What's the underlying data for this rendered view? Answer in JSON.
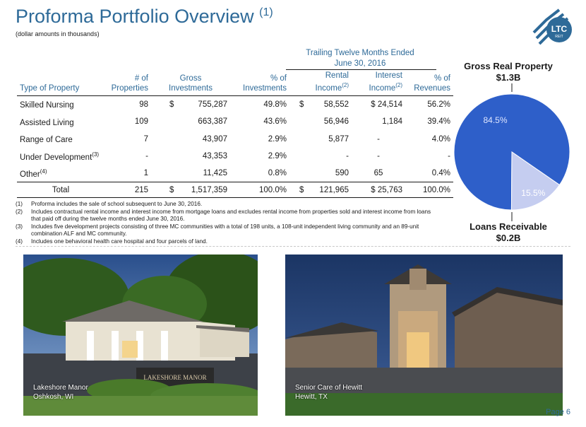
{
  "header": {
    "title": "Proforma Portfolio Overview",
    "title_footnote": "(1)",
    "subtitle": "(dollar amounts in thousands)"
  },
  "logo": {
    "icon": "ltc-reit-logo-icon",
    "text": "LTC",
    "subtext": "REIT"
  },
  "table": {
    "ttm_header_line1": "Trailing Twelve Months Ended",
    "ttm_header_line2": "June 30, 2016",
    "columns": {
      "type": "Type of Property",
      "num_line1": "# of",
      "num_line2": "Properties",
      "gross_line1": "Gross",
      "gross_line2": "Investments",
      "pct_inv_line1": "% of",
      "pct_inv_line2": "Investments",
      "rental_line1": "Rental",
      "rental_line2": "Income",
      "rental_footnote": "(2)",
      "interest_line1": "Interest",
      "interest_line2": "Income",
      "interest_footnote": "(2)",
      "pct_rev_line1": "% of",
      "pct_rev_line2": "Revenues"
    },
    "rows": [
      {
        "type": "Skilled Nursing",
        "footnote": "",
        "num": "98",
        "gross_prefix": "$",
        "gross": "755,287",
        "pct_inv": "49.8%",
        "rental_prefix": "$",
        "rental": "58,552",
        "interest": "$ 24,514",
        "pct_rev": "56.2%"
      },
      {
        "type": "Assisted Living",
        "footnote": "",
        "num": "109",
        "gross_prefix": "",
        "gross": "663,387",
        "pct_inv": "43.6%",
        "rental_prefix": "",
        "rental": "56,946",
        "interest": "1,184",
        "pct_rev": "39.4%"
      },
      {
        "type": "Range of Care",
        "footnote": "",
        "num": "7",
        "gross_prefix": "",
        "gross": "43,907",
        "pct_inv": "2.9%",
        "rental_prefix": "",
        "rental": "5,877",
        "interest": "-",
        "pct_rev": "4.0%"
      },
      {
        "type": "Under Development",
        "footnote": "(3)",
        "num": "-",
        "gross_prefix": "",
        "gross": "43,353",
        "pct_inv": "2.9%",
        "rental_prefix": "",
        "rental": "-",
        "interest": "-",
        "pct_rev": "-"
      },
      {
        "type": "Other",
        "footnote": "(4)",
        "num": "1",
        "gross_prefix": "",
        "gross": "11,425",
        "pct_inv": "0.8%",
        "rental_prefix": "",
        "rental": "590",
        "interest": "65",
        "pct_rev": "0.4%"
      }
    ],
    "total": {
      "type": "Total",
      "num": "215",
      "gross_prefix": "$",
      "gross": "1,517,359",
      "pct_inv": "100.0%",
      "rental_prefix": "$",
      "rental": "121,965",
      "interest": "$ 25,763",
      "pct_rev": "100.0%"
    }
  },
  "footnotes": [
    {
      "num": "(1)",
      "text": "Proforma includes the sale of school subsequent to June 30, 2016."
    },
    {
      "num": "(2)",
      "text": "Includes contractual rental income and interest income from mortgage loans and excludes rental income from properties sold and interest income from loans that paid off during the twelve months ended June 30, 2016."
    },
    {
      "num": "(3)",
      "text": "Includes five development projects consisting of three MC communities with a total of 198 units, a 108-unit independent living community and an 89-unit combination ALF and MC community."
    },
    {
      "num": "(4)",
      "text": "Includes one behavioral health care hospital and four parcels of land."
    }
  ],
  "chart_data": {
    "type": "pie",
    "title": "",
    "slices": [
      {
        "name": "Gross Real Property",
        "amount": "$1.3B",
        "label": "84.5%",
        "value": 84.5,
        "color": "#2e5fc9"
      },
      {
        "name": "Loans Receivable",
        "amount": "$0.2B",
        "label": "15.5%",
        "value": 15.5,
        "color": "#c5cdf0"
      }
    ]
  },
  "photos": [
    {
      "name": "Lakeshore Manor",
      "location": "Oshkosh, WI",
      "sign_text": "LAKESHORE MANOR"
    },
    {
      "name": "Senior Care of Hewitt",
      "location": "Hewitt, TX"
    }
  ],
  "page": {
    "label": "Page 6"
  }
}
